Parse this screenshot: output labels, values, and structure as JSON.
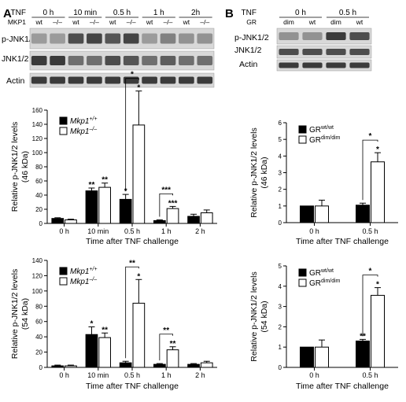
{
  "figure": {
    "panel_labels": [
      "A",
      "B"
    ],
    "time_axis_title": "Time after TNF challenge",
    "colors": {
      "bar_black": "#000000",
      "bar_white": "#ffffff",
      "blot_bg": "#d8d8d8",
      "band": "#2a2a2a"
    }
  },
  "blots": {
    "A": {
      "tnf_label": "TNF",
      "genotype_label": "MKP1",
      "times": [
        "0 h",
        "10 min",
        "0.5 h",
        "1 h",
        "2h"
      ],
      "genotypes": [
        "wt",
        "–/–"
      ],
      "rows": [
        "p-JNK1/2",
        "JNK1/2",
        "Actin"
      ],
      "band_intensity": [
        [
          0.35,
          0.35,
          0.8,
          0.85,
          0.75,
          0.85,
          0.35,
          0.5,
          0.4,
          0.4
        ],
        [
          0.9,
          0.9,
          0.6,
          0.6,
          0.8,
          0.75,
          0.6,
          0.7,
          0.6,
          0.6
        ],
        [
          0.9,
          0.9,
          0.9,
          0.9,
          0.9,
          0.9,
          0.9,
          0.9,
          0.9,
          0.9
        ]
      ]
    },
    "B": {
      "tnf_label": "TNF",
      "genotype_label": "GR",
      "times": [
        "0 h",
        "0.5 h"
      ],
      "genotypes": [
        "dim",
        "wt"
      ],
      "rows": [
        "p-JNK1/2",
        "JNK1/2",
        "Actin"
      ],
      "band_intensity": [
        [
          0.4,
          0.4,
          0.9,
          0.8
        ],
        [
          0.8,
          0.8,
          0.8,
          0.8
        ],
        [
          0.9,
          0.9,
          0.9,
          0.9
        ]
      ]
    }
  },
  "chart_data": [
    {
      "type": "bar",
      "panel": "A",
      "ylabel": "Relative p-JNK1/2 levels (46 kDa)",
      "xlabel": "Time after TNF challenge",
      "categories": [
        "0 h",
        "10 min",
        "0.5 h",
        "1 h",
        "2 h"
      ],
      "ylim": [
        0,
        160
      ],
      "yticks": [
        0,
        20,
        40,
        60,
        80,
        100,
        120,
        140,
        160
      ],
      "legend_position": "top-left",
      "series": [
        {
          "name": "Mkp1+/+",
          "legend_base": "Mkp1",
          "legend_sup": "+/+",
          "fill": "#000000",
          "values": [
            7,
            46,
            34,
            4,
            10
          ],
          "errors": [
            1,
            4,
            7,
            1,
            3
          ],
          "stars": [
            "",
            "**",
            "*",
            "",
            ""
          ]
        },
        {
          "name": "Mkp1–/–",
          "legend_base": "Mkp1",
          "legend_sup": "–/–",
          "fill": "#ffffff",
          "values": [
            5,
            51,
            139,
            21,
            15
          ],
          "errors": [
            1,
            6,
            48,
            3,
            4
          ],
          "stars": [
            "",
            "**",
            "*",
            "***",
            ""
          ]
        }
      ],
      "brackets": [
        {
          "category": 2,
          "label": "*"
        },
        {
          "category": 3,
          "label": "***"
        }
      ]
    },
    {
      "type": "bar",
      "panel": "A",
      "ylabel": "Relative p-JNK1/2 levels (54 kDa)",
      "xlabel": "Time after TNF challenge",
      "categories": [
        "0 h",
        "10 min",
        "0.5 h",
        "1 h",
        "2 h"
      ],
      "ylim": [
        0,
        140
      ],
      "yticks": [
        0,
        20,
        40,
        60,
        80,
        100,
        120,
        140
      ],
      "legend_position": "top-left",
      "series": [
        {
          "name": "Mkp1+/+",
          "legend_base": "Mkp1",
          "legend_sup": "+/+",
          "fill": "#000000",
          "values": [
            2,
            43,
            6,
            4,
            4
          ],
          "errors": [
            1,
            10,
            2,
            1,
            1
          ],
          "stars": [
            "",
            "*",
            "",
            "",
            ""
          ]
        },
        {
          "name": "Mkp1–/–",
          "legend_base": "Mkp1",
          "legend_sup": "–/–",
          "fill": "#ffffff",
          "values": [
            2,
            39,
            84,
            23,
            6
          ],
          "errors": [
            1,
            6,
            31,
            4,
            2
          ],
          "stars": [
            "",
            "**",
            "*",
            "**",
            ""
          ]
        }
      ],
      "brackets": [
        {
          "category": 2,
          "label": "**"
        },
        {
          "category": 3,
          "label": "**"
        }
      ]
    },
    {
      "type": "bar",
      "panel": "B",
      "ylabel": "Relative p-JNK1/2 levels (46 kDa)",
      "xlabel": "Time after TNF challenge",
      "categories": [
        "0 h",
        "0.5 h"
      ],
      "ylim": [
        0,
        6
      ],
      "yticks": [
        0,
        1,
        2,
        3,
        4,
        5,
        6
      ],
      "legend_position": "top-left",
      "series": [
        {
          "name": "GRwt/wt",
          "legend_base": "GR",
          "legend_sup": "wt/wt",
          "fill": "#000000",
          "values": [
            1.0,
            1.05
          ],
          "errors": [
            0,
            0.12
          ],
          "stars": [
            "",
            ""
          ]
        },
        {
          "name": "GRdim/dim",
          "legend_base": "GR",
          "legend_sup": "dim/dim",
          "fill": "#ffffff",
          "values": [
            1.0,
            3.65
          ],
          "errors": [
            0.35,
            0.55
          ],
          "stars": [
            "",
            "*"
          ]
        }
      ],
      "brackets": [
        {
          "category": 1,
          "label": "*"
        }
      ]
    },
    {
      "type": "bar",
      "panel": "B",
      "ylabel": "Relative p-JNK1/2 levels (54 kDa)",
      "xlabel": "Time after TNF challenge",
      "categories": [
        "0 h",
        "0.5 h"
      ],
      "ylim": [
        0,
        5
      ],
      "yticks": [
        0,
        1,
        2,
        3,
        4,
        5
      ],
      "legend_position": "top-left",
      "series": [
        {
          "name": "GRwt/wt",
          "legend_base": "GR",
          "legend_sup": "wt/wt",
          "fill": "#000000",
          "values": [
            1.0,
            1.3
          ],
          "errors": [
            0,
            0.08
          ],
          "stars": [
            "",
            "**"
          ]
        },
        {
          "name": "GRdim/dim",
          "legend_base": "GR",
          "legend_sup": "dim/dim",
          "fill": "#ffffff",
          "values": [
            1.0,
            3.55
          ],
          "errors": [
            0.35,
            0.38
          ],
          "stars": [
            "",
            "*"
          ]
        }
      ],
      "brackets": [
        {
          "category": 1,
          "label": "*"
        }
      ]
    }
  ]
}
